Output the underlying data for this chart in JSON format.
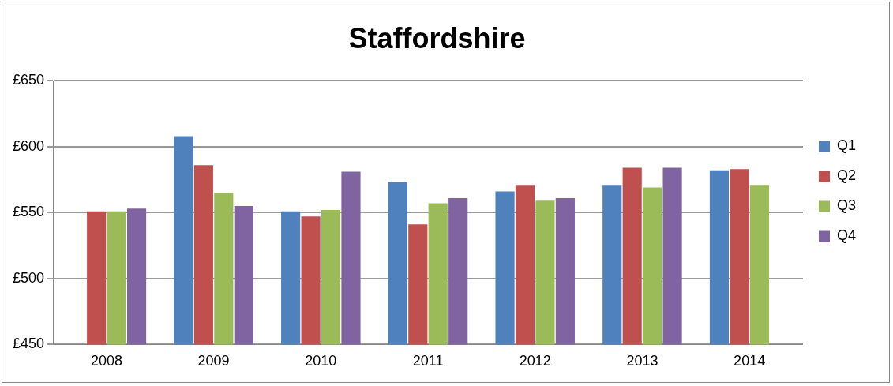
{
  "chart_data": {
    "type": "bar",
    "title": "Staffordshire",
    "categories": [
      "2008",
      "2009",
      "2010",
      "2011",
      "2012",
      "2013",
      "2014"
    ],
    "series": [
      {
        "name": "Q1",
        "color": "#4f81bd",
        "values": [
          null,
          608,
          551,
          573,
          566,
          571,
          582
        ]
      },
      {
        "name": "Q2",
        "color": "#c0504d",
        "values": [
          551,
          586,
          547,
          541,
          571,
          584,
          583
        ]
      },
      {
        "name": "Q3",
        "color": "#9bbb59",
        "values": [
          551,
          565,
          552,
          557,
          559,
          569,
          571
        ]
      },
      {
        "name": "Q4",
        "color": "#8064a2",
        "values": [
          553,
          555,
          581,
          561,
          561,
          584,
          null
        ]
      }
    ],
    "ylim": [
      450,
      650
    ],
    "yticks": [
      {
        "value": 450,
        "label": "£450"
      },
      {
        "value": 500,
        "label": "£500"
      },
      {
        "value": 550,
        "label": "£550"
      },
      {
        "value": 600,
        "label": "£600"
      },
      {
        "value": 650,
        "label": "£650"
      }
    ],
    "grid": "y",
    "legend": "right"
  }
}
